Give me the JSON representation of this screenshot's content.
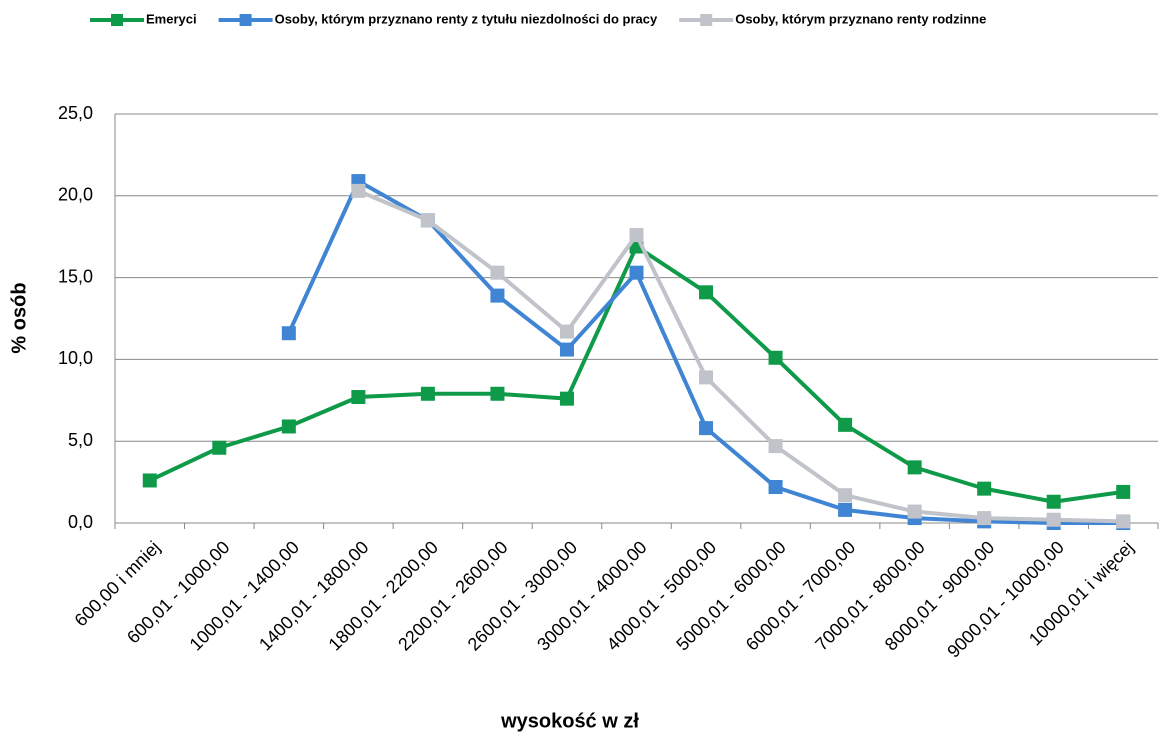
{
  "chart_data": {
    "type": "line",
    "xlabel": "wysokość w zł",
    "ylabel": "% osób",
    "categories": [
      "600,00 i mniej",
      "600,01 - 1000,00",
      "1000,01 - 1400,00",
      "1400,01 - 1800,00",
      "1800,01 - 2200,00",
      "2200,01 - 2600,00",
      "2600,01 - 3000,00",
      "3000,01 - 4000,00",
      "4000,01 - 5000,00",
      "5000,01 - 6000,00",
      "6000,01 - 7000,00",
      "7000,01 - 8000,00",
      "8000,01 - 9000,00",
      "9000,01 - 10000,00",
      "10000,01 i więcej"
    ],
    "series": [
      {
        "name": "Emeryci",
        "color": "#0e9a48",
        "values": [
          2.6,
          4.6,
          5.9,
          7.7,
          7.9,
          7.9,
          7.6,
          16.9,
          14.1,
          10.1,
          6.0,
          3.4,
          2.1,
          1.3,
          1.9
        ]
      },
      {
        "name": "Osoby, którym przyznano renty z tytułu niezdolności do pracy",
        "color": "#3f85d3",
        "values": [
          null,
          null,
          11.6,
          20.9,
          18.5,
          13.9,
          10.6,
          15.3,
          5.8,
          2.2,
          0.8,
          0.3,
          0.1,
          0.0,
          0.0
        ]
      },
      {
        "name": "Osoby, którym przyznano renty rodzinne",
        "color": "#c0c3c9",
        "values": [
          null,
          null,
          null,
          20.3,
          18.5,
          15.3,
          11.7,
          17.6,
          8.9,
          4.7,
          1.7,
          0.7,
          0.3,
          0.2,
          0.1
        ]
      }
    ],
    "ylim": [
      0,
      25
    ],
    "yticks": [
      {
        "value": 0,
        "label": "0,0"
      },
      {
        "value": 5,
        "label": "5,0"
      },
      {
        "value": 10,
        "label": "10,0"
      },
      {
        "value": 15,
        "label": "15,0"
      },
      {
        "value": 20,
        "label": "20,0"
      },
      {
        "value": 25,
        "label": "25,0"
      }
    ],
    "grid": true,
    "legend": "top"
  }
}
